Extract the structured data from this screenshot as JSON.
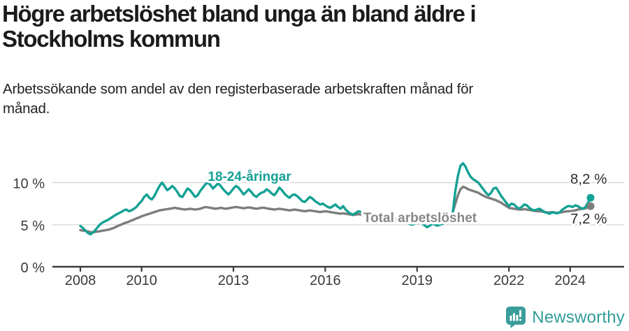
{
  "header": {
    "title": "Högre arbetslöshet bland unga än bland äldre i Stockholms kommun",
    "title_lines": [
      "Högre arbetslöshet bland unga än bland äldre i",
      "Stockholms kommun"
    ],
    "subtitle": "Arbetssökande som andel av den registerbaserade arbetskraften månad för månad.",
    "subtitle_lines": [
      "Arbetssökande som andel av den registerbaserade arbetskraften månad för",
      "månad."
    ]
  },
  "footer": {
    "brand": "Newsworthy"
  },
  "colors": {
    "youth_line": "#14a195",
    "total_line": "#7d7d7d",
    "total_label": "#878787",
    "grid": "#d8d8d8",
    "axis": "#3a3a3a",
    "tick_label": "#3a3a3a",
    "value_label": "#2d2d2d",
    "halo": "#ffffff",
    "brand_teal": "#2f9c98",
    "logo_mark": "#3a9d9a"
  },
  "chart_data": {
    "type": "line",
    "title": "Högre arbetslöshet bland unga än bland äldre i Stockholms kommun",
    "subtitle": "Arbetssökande som andel av den registerbaserade arbetskraften månad för månad.",
    "unit": "%",
    "frequency": "monthly",
    "x_start_year": 2008,
    "x_end_year_decimal": 2024.67,
    "x_ticks": [
      2008,
      2010,
      2013,
      2016,
      2019,
      2022,
      2024
    ],
    "y_axis": {
      "ticks": [
        {
          "value": 0,
          "label": "0 %"
        },
        {
          "value": 5,
          "label": "5 %"
        },
        {
          "value": 10,
          "label": "10 %"
        }
      ],
      "ylim": [
        0,
        13.5
      ],
      "grid": "horizontal"
    },
    "legend_position": "inline",
    "series": [
      {
        "id": "youth",
        "name": "18-24-åringar",
        "color": "#14a195",
        "end_label": "8,2 %",
        "end_value": 8.2,
        "values": [
          4.85,
          4.6,
          4.3,
          4.0,
          3.85,
          4.1,
          4.4,
          4.8,
          5.1,
          5.3,
          5.45,
          5.6,
          5.8,
          6.0,
          6.2,
          6.35,
          6.5,
          6.7,
          6.8,
          6.6,
          6.7,
          6.9,
          7.1,
          7.5,
          7.8,
          8.3,
          8.6,
          8.2,
          8.0,
          8.4,
          9.0,
          9.6,
          10.0,
          9.6,
          9.1,
          9.3,
          9.6,
          9.3,
          8.9,
          8.4,
          8.3,
          8.8,
          9.3,
          9.1,
          8.7,
          8.3,
          8.5,
          9.0,
          9.4,
          9.8,
          10.0,
          9.7,
          9.3,
          9.6,
          9.9,
          9.6,
          9.2,
          8.9,
          8.6,
          8.9,
          9.3,
          9.6,
          9.4,
          9.0,
          8.6,
          8.9,
          9.2,
          8.9,
          8.5,
          8.3,
          8.6,
          8.8,
          8.9,
          9.2,
          9.0,
          8.7,
          8.5,
          8.9,
          9.4,
          9.1,
          8.7,
          8.4,
          8.2,
          8.5,
          8.6,
          8.4,
          8.1,
          7.8,
          7.7,
          8.0,
          8.3,
          8.1,
          7.8,
          7.6,
          7.4,
          7.5,
          7.3,
          7.1,
          7.0,
          7.2,
          7.4,
          7.1,
          6.9,
          7.2,
          6.8,
          6.5,
          6.3,
          6.2,
          6.4,
          6.6,
          6.5,
          6.3,
          6.1,
          6.3,
          6.5,
          6.3,
          6.0,
          5.8,
          5.7,
          5.8,
          5.9,
          6.0,
          5.8,
          5.6,
          5.4,
          5.6,
          5.8,
          5.6,
          5.3,
          5.1,
          5.0,
          5.1,
          5.2,
          5.3,
          5.1,
          4.9,
          4.7,
          4.9,
          5.1,
          5.0,
          4.9,
          5.0,
          5.1,
          5.2,
          5.4,
          5.6,
          6.5,
          9.0,
          10.8,
          12.0,
          12.3,
          11.9,
          11.2,
          10.7,
          10.4,
          10.2,
          10.0,
          9.6,
          9.2,
          8.8,
          8.5,
          8.8,
          9.3,
          9.4,
          8.9,
          8.4,
          8.0,
          7.6,
          7.2,
          7.5,
          7.4,
          7.1,
          6.9,
          7.1,
          7.4,
          7.3,
          7.0,
          6.8,
          6.7,
          6.8,
          6.9,
          6.7,
          6.5,
          6.4,
          6.3,
          6.5,
          6.4,
          6.35,
          6.5,
          6.8,
          7.0,
          7.2,
          7.2,
          7.1,
          7.3,
          7.2,
          7.0,
          6.9,
          7.1,
          7.6,
          8.2
        ]
      },
      {
        "id": "total",
        "name": "Total arbetslöshet",
        "color": "#7d7d7d",
        "end_label": "7,2 %",
        "end_value": 7.2,
        "values": [
          4.35,
          4.3,
          4.25,
          4.2,
          4.1,
          4.1,
          4.15,
          4.2,
          4.25,
          4.3,
          4.35,
          4.4,
          4.5,
          4.6,
          4.75,
          4.9,
          5.0,
          5.15,
          5.25,
          5.35,
          5.5,
          5.6,
          5.75,
          5.85,
          6.0,
          6.1,
          6.2,
          6.3,
          6.4,
          6.5,
          6.6,
          6.7,
          6.75,
          6.8,
          6.85,
          6.9,
          6.95,
          7.0,
          6.95,
          6.9,
          6.85,
          6.8,
          6.85,
          6.9,
          6.85,
          6.8,
          6.85,
          6.9,
          7.0,
          7.1,
          7.05,
          7.0,
          6.95,
          6.9,
          6.95,
          7.0,
          6.95,
          6.9,
          6.95,
          7.0,
          7.05,
          7.1,
          7.05,
          7.0,
          6.95,
          7.0,
          7.05,
          7.0,
          6.95,
          6.9,
          6.95,
          7.0,
          7.0,
          6.95,
          6.9,
          6.85,
          6.8,
          6.85,
          6.9,
          6.85,
          6.8,
          6.75,
          6.7,
          6.75,
          6.8,
          6.75,
          6.7,
          6.65,
          6.6,
          6.65,
          6.7,
          6.65,
          6.6,
          6.55,
          6.5,
          6.55,
          6.6,
          6.55,
          6.5,
          6.45,
          6.4,
          6.35,
          6.3,
          6.35,
          6.3,
          6.25,
          6.2,
          6.15,
          6.2,
          6.25,
          6.2,
          6.1,
          6.05,
          6.0,
          6.05,
          6.0,
          5.95,
          5.9,
          5.85,
          5.9,
          5.9,
          5.85,
          5.8,
          5.75,
          5.7,
          5.65,
          5.7,
          5.65,
          5.6,
          5.55,
          5.5,
          5.55,
          5.6,
          5.55,
          5.5,
          5.45,
          5.5,
          5.55,
          5.6,
          5.55,
          5.6,
          5.65,
          5.7,
          5.8,
          5.9,
          6.0,
          6.5,
          7.5,
          8.5,
          9.2,
          9.5,
          9.4,
          9.2,
          9.1,
          9.0,
          8.9,
          8.8,
          8.6,
          8.45,
          8.3,
          8.2,
          8.1,
          8.0,
          7.9,
          7.75,
          7.6,
          7.4,
          7.2,
          7.0,
          6.95,
          6.9,
          6.85,
          6.8,
          6.8,
          6.85,
          6.8,
          6.75,
          6.7,
          6.65,
          6.6,
          6.6,
          6.55,
          6.5,
          6.45,
          6.45,
          6.5,
          6.45,
          6.4,
          6.45,
          6.5,
          6.55,
          6.6,
          6.6,
          6.65,
          6.7,
          6.8,
          6.85,
          6.9,
          6.95,
          7.05,
          7.2
        ]
      }
    ]
  }
}
